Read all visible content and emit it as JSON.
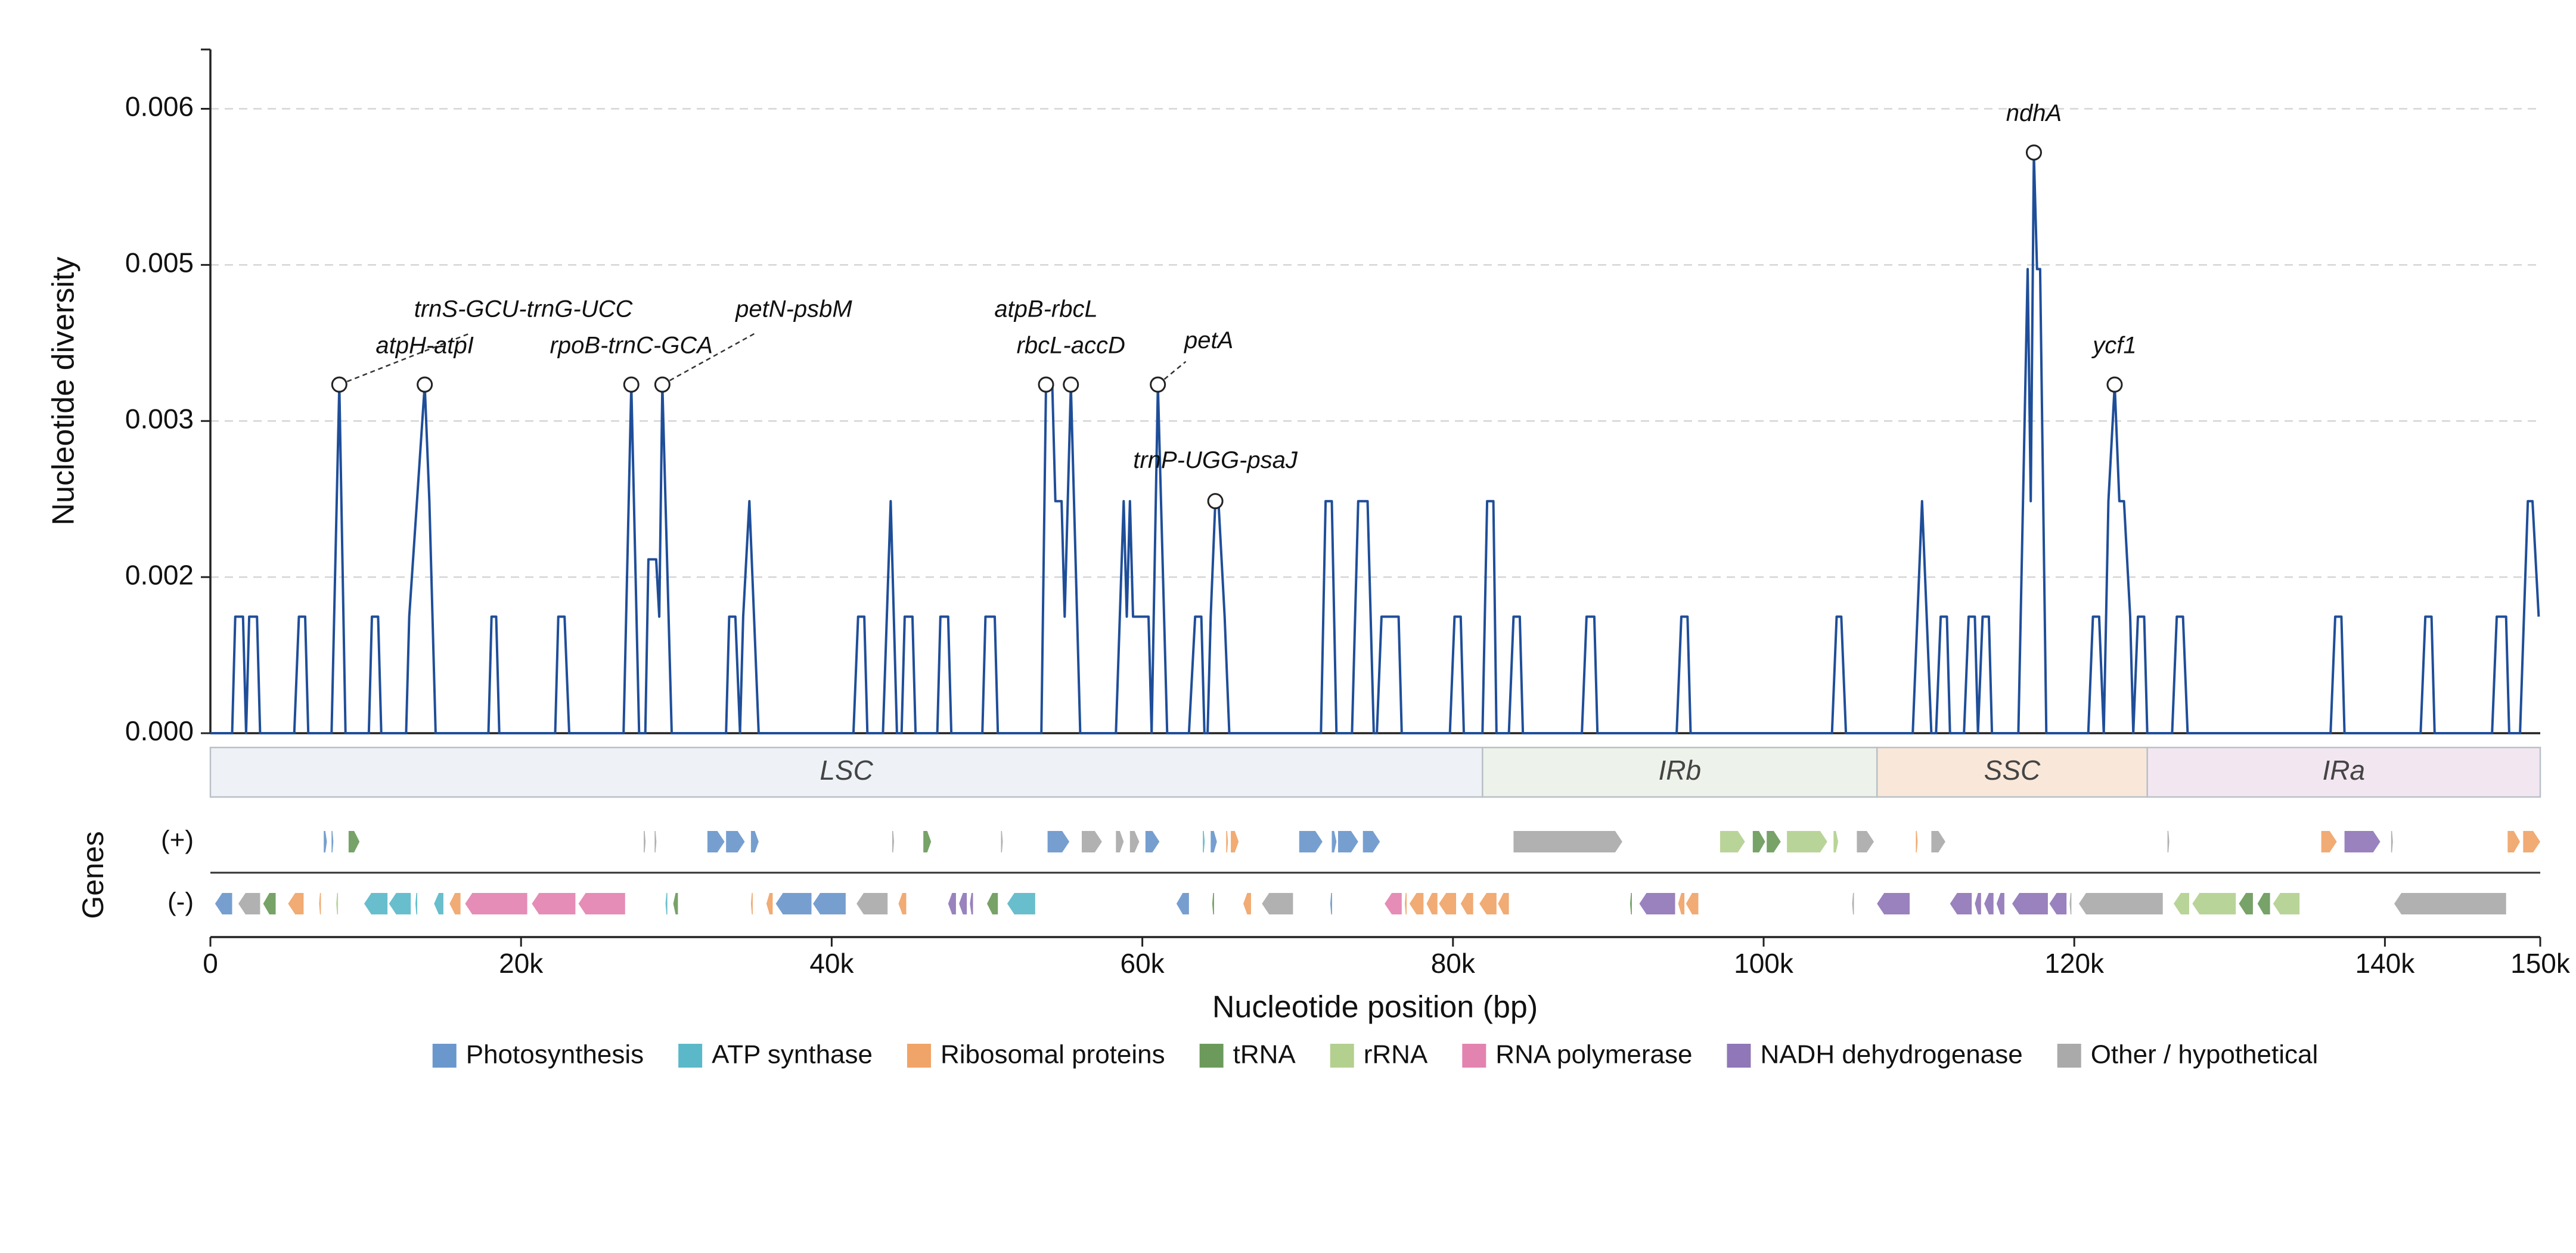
{
  "chart_data": {
    "type": "line",
    "xlabel": "Nucleotide position (bp)",
    "ylabel": "Nucleotide diversity",
    "color": "#1f4e99",
    "xlim": [
      0,
      150000
    ],
    "ylim": [
      0,
      0.00657
    ],
    "xticks": [
      0,
      {
        "value": 20000,
        "label": "20k"
      },
      {
        "value": 40000,
        "label": "40k"
      },
      {
        "value": 60000,
        "label": "60k"
      },
      {
        "value": 80000,
        "label": "80k"
      },
      {
        "value": 100000,
        "label": "100k"
      },
      {
        "value": 120000,
        "label": "120k"
      },
      {
        "value": 140000,
        "label": "140k"
      },
      {
        "value": 150000,
        "label": "150k"
      }
    ],
    "yticks": [
      {
        "value": 0,
        "label": "0.000"
      },
      {
        "value": 0.0015,
        "label": "0.002"
      },
      0.003,
      {
        "value": 0.0045,
        "label": "0.005"
      },
      0.006
    ],
    "grid": true,
    "x": [
      0,
      1400,
      1600,
      2100,
      2300,
      2500,
      3000,
      3200,
      5400,
      5700,
      6100,
      6300,
      7800,
      8300,
      8700,
      10200,
      10400,
      10800,
      11000,
      12600,
      12800,
      13300,
      13800,
      14100,
      14500,
      17900,
      18100,
      18400,
      18600,
      22200,
      22400,
      22800,
      23100,
      26600,
      27100,
      27600,
      28000,
      28200,
      28700,
      28900,
      29100,
      29700,
      33200,
      33400,
      33800,
      34100,
      34300,
      34700,
      35000,
      35300,
      41400,
      41700,
      42100,
      42300,
      43300,
      43800,
      44200,
      44500,
      44700,
      45200,
      45400,
      46800,
      47000,
      47500,
      47700,
      49700,
      49900,
      50500,
      50700,
      53500,
      53800,
      54200,
      54400,
      54800,
      55000,
      55400,
      56000,
      58300,
      58800,
      59000,
      59200,
      59400,
      60400,
      60600,
      61000,
      61600,
      63000,
      63400,
      63800,
      64000,
      64200,
      64400,
      64700,
      64900,
      65300,
      65600,
      71500,
      71800,
      72200,
      72500,
      73500,
      73900,
      74500,
      74900,
      75100,
      75400,
      76500,
      76700,
      79800,
      80100,
      80500,
      80700,
      81900,
      82200,
      82600,
      82800,
      83600,
      83900,
      84300,
      84500,
      88300,
      88600,
      89100,
      89300,
      94400,
      94700,
      95100,
      95300,
      104400,
      104700,
      105000,
      105300,
      109600,
      109900,
      110200,
      110500,
      110800,
      111100,
      111400,
      111800,
      112000,
      112900,
      113200,
      113600,
      113800,
      114100,
      114500,
      114700,
      116400,
      116700,
      117000,
      117200,
      117400,
      117600,
      117800,
      118200,
      120900,
      121200,
      121600,
      121900,
      122200,
      122600,
      122900,
      123200,
      123600,
      123800,
      124100,
      124500,
      124700,
      126300,
      126600,
      127000,
      127300,
      136500,
      136800,
      137200,
      137400,
      142300,
      142600,
      143000,
      143200,
      146900,
      147200,
      147800,
      148000,
      148700,
      149200,
      149500,
      149900
    ],
    "values": [
      0,
      0,
      0.00112,
      0.00112,
      0,
      0.00112,
      0.00112,
      0,
      0,
      0.00112,
      0.00112,
      0,
      0,
      0.00335,
      0,
      0,
      0.00112,
      0.00112,
      0,
      0,
      0.00112,
      0.00223,
      0.00335,
      0.00223,
      0,
      0,
      0.00112,
      0.00112,
      0,
      0,
      0.00112,
      0.00112,
      0,
      0,
      0.00335,
      0,
      0,
      0.00167,
      0.00167,
      0.00112,
      0.00335,
      0,
      0,
      0.00112,
      0.00112,
      0,
      0.00112,
      0.00223,
      0.00112,
      0,
      0,
      0.00112,
      0.00112,
      0,
      0,
      0.00223,
      0,
      0,
      0.00112,
      0.00112,
      0,
      0,
      0.00112,
      0.00112,
      0,
      0,
      0.00112,
      0.00112,
      0,
      0,
      0.00335,
      0.00335,
      0.00223,
      0.00223,
      0.00112,
      0.00335,
      0,
      0,
      0.00223,
      0.00112,
      0.00223,
      0.00112,
      0.00112,
      0,
      0.00335,
      0,
      0,
      0.00112,
      0.00112,
      0,
      0,
      0.00112,
      0.00223,
      0.00223,
      0.00112,
      0,
      0,
      0.00223,
      0.00223,
      0,
      0,
      0.00223,
      0.00223,
      0,
      0,
      0.00112,
      0.00112,
      0,
      0,
      0.00112,
      0.00112,
      0,
      0,
      0.00223,
      0.00223,
      0,
      0,
      0.00112,
      0.00112,
      0,
      0,
      0.00112,
      0.00112,
      0,
      0,
      0.00112,
      0.00112,
      0,
      0,
      0.00112,
      0.00112,
      0,
      0,
      0.00112,
      0.00223,
      0.00112,
      0,
      0,
      0.00112,
      0.00112,
      0,
      0,
      0.00112,
      0.00112,
      0,
      0.00112,
      0.00112,
      0,
      0,
      0.00223,
      0.00446,
      0.00223,
      0.00558,
      0.00446,
      0.00446,
      0,
      0,
      0.00112,
      0.00112,
      0,
      0.00223,
      0.00335,
      0.00223,
      0.00223,
      0.00112,
      0,
      0.00112,
      0.00112,
      0,
      0,
      0.00112,
      0.00112,
      0,
      0,
      0.00112,
      0.00112,
      0,
      0,
      0.00112,
      0.00112,
      0,
      0,
      0.00112,
      0.00112,
      0,
      0,
      0.00223,
      0.00223,
      0.00112
    ],
    "annotations": [
      {
        "text": "trnS-GCU-trnG-UCC",
        "x": 8300,
        "y": 0.00335
      },
      {
        "text": "atpH-atpI",
        "x": 13800,
        "y": 0.00335
      },
      {
        "text": "rpoB-trnC-GCA",
        "x": 27100,
        "y": 0.00335
      },
      {
        "text": "petN-psbM",
        "x": 29100,
        "y": 0.00335
      },
      {
        "text": "atpB-rbcL",
        "x": 53800,
        "y": 0.00335
      },
      {
        "text": "rbcL-accD",
        "x": 55400,
        "y": 0.00335
      },
      {
        "text": "petA",
        "x": 61000,
        "y": 0.00335
      },
      {
        "text": "trnP-UGG-psaJ",
        "x": 64700,
        "y": 0.00223
      },
      {
        "text": "ndhA",
        "x": 117400,
        "y": 0.00558
      },
      {
        "text": "ycf1",
        "x": 122600,
        "y": 0.00335
      }
    ],
    "regions": [
      {
        "name": "LSC",
        "start": 0,
        "end": 81900,
        "color": "#eef2f6"
      },
      {
        "name": "IRb",
        "start": 81900,
        "end": 107300,
        "color": "#edf2ea"
      },
      {
        "name": "SSC",
        "start": 107300,
        "end": 124700,
        "color": "#f9e8d9"
      },
      {
        "name": "IRa",
        "start": 124700,
        "end": 150000,
        "color": "#f2e7f1"
      }
    ],
    "genes_label": "Genes",
    "gene_groups": [
      {
        "name": "Photosynthesis",
        "color": "#6a97cc"
      },
      {
        "name": "ATP synthase",
        "color": "#5bb8c8"
      },
      {
        "name": "Ribosomal proteins",
        "color": "#f0a468"
      },
      {
        "name": "tRNA",
        "color": "#6b9a5b"
      },
      {
        "name": "rRNA",
        "color": "#b3d08f"
      },
      {
        "name": "RNA polymerase",
        "color": "#e383b0"
      },
      {
        "name": "NADH dehydrogenase",
        "color": "#9077b7"
      },
      {
        "name": "Other / hypothetical",
        "color": "#aaaaaa"
      }
    ],
    "gene_tracks": [
      {
        "label": "(+)",
        "genes": [
          [
            7300,
            7500,
            0
          ],
          [
            7800,
            7900,
            0
          ],
          [
            8900,
            9600,
            3
          ],
          [
            27900,
            28000,
            7
          ],
          [
            28600,
            28700,
            7
          ],
          [
            32000,
            33100,
            0
          ],
          [
            33200,
            34400,
            0
          ],
          [
            34800,
            35300,
            0
          ],
          [
            43900,
            44000,
            7
          ],
          [
            45900,
            46400,
            3
          ],
          [
            50900,
            51000,
            7
          ],
          [
            53900,
            55300,
            0
          ],
          [
            56100,
            57400,
            7
          ],
          [
            58300,
            58800,
            7
          ],
          [
            59200,
            59800,
            7
          ],
          [
            60200,
            61100,
            0
          ],
          [
            63900,
            64000,
            1
          ],
          [
            64400,
            64800,
            0
          ],
          [
            65400,
            65500,
            2
          ],
          [
            65700,
            66200,
            2
          ],
          [
            70100,
            71600,
            0
          ],
          [
            72200,
            72500,
            0
          ],
          [
            72600,
            73900,
            0
          ],
          [
            74200,
            75300,
            0
          ],
          [
            83900,
            90900,
            7
          ],
          [
            97200,
            98800,
            4
          ],
          [
            99300,
            100100,
            3
          ],
          [
            100200,
            101100,
            3
          ],
          [
            101500,
            104100,
            4
          ],
          [
            104500,
            104800,
            4
          ],
          [
            106000,
            107100,
            7
          ],
          [
            109800,
            109900,
            2
          ],
          [
            110800,
            111700,
            7
          ],
          [
            126000,
            126100,
            7
          ],
          [
            135900,
            136900,
            2
          ],
          [
            137400,
            139700,
            6
          ],
          [
            140400,
            140500,
            7
          ],
          [
            147900,
            148700,
            2
          ],
          [
            148900,
            150000,
            2
          ]
        ]
      },
      {
        "label": "(-)",
        "genes": [
          [
            300,
            1400,
            0
          ],
          [
            1800,
            3200,
            7
          ],
          [
            3400,
            4200,
            3
          ],
          [
            5000,
            6000,
            2
          ],
          [
            7000,
            7100,
            2
          ],
          [
            8100,
            8200,
            4
          ],
          [
            9900,
            11400,
            1
          ],
          [
            11500,
            12900,
            1
          ],
          [
            13200,
            13300,
            1
          ],
          [
            14400,
            15000,
            1
          ],
          [
            15400,
            16100,
            2
          ],
          [
            16400,
            20400,
            5
          ],
          [
            20700,
            23500,
            5
          ],
          [
            23700,
            26700,
            5
          ],
          [
            29300,
            29400,
            1
          ],
          [
            29800,
            30100,
            3
          ],
          [
            34800,
            34900,
            2
          ],
          [
            35800,
            36200,
            2
          ],
          [
            36400,
            38700,
            0
          ],
          [
            38800,
            40900,
            0
          ],
          [
            41600,
            43600,
            7
          ],
          [
            44300,
            44800,
            2
          ],
          [
            47500,
            48000,
            6
          ],
          [
            48200,
            48700,
            6
          ],
          [
            48900,
            49100,
            6
          ],
          [
            50000,
            50700,
            3
          ],
          [
            51300,
            53100,
            1
          ],
          [
            62200,
            63000,
            0
          ],
          [
            64500,
            64600,
            3
          ],
          [
            66500,
            67000,
            2
          ],
          [
            67700,
            69700,
            7
          ],
          [
            72100,
            72200,
            0
          ],
          [
            75600,
            76700,
            5
          ],
          [
            76900,
            77000,
            2
          ],
          [
            77200,
            78100,
            2
          ],
          [
            78300,
            79000,
            2
          ],
          [
            79100,
            80200,
            2
          ],
          [
            80500,
            81300,
            2
          ],
          [
            81700,
            82800,
            2
          ],
          [
            82900,
            83600,
            2
          ],
          [
            91400,
            91500,
            3
          ],
          [
            92000,
            94300,
            6
          ],
          [
            94500,
            94900,
            2
          ],
          [
            95000,
            95800,
            2
          ],
          [
            105700,
            105800,
            7
          ],
          [
            107300,
            109400,
            6
          ],
          [
            112000,
            113400,
            6
          ],
          [
            113600,
            114000,
            6
          ],
          [
            114200,
            114800,
            6
          ],
          [
            115000,
            115500,
            6
          ],
          [
            116000,
            118300,
            6
          ],
          [
            118400,
            119500,
            6
          ],
          [
            119700,
            119800,
            7
          ],
          [
            120300,
            125700,
            7
          ],
          [
            126400,
            127400,
            4
          ],
          [
            127600,
            130400,
            4
          ],
          [
            130600,
            131500,
            3
          ],
          [
            131800,
            132600,
            3
          ],
          [
            132800,
            134500,
            4
          ],
          [
            140600,
            147800,
            7
          ]
        ]
      }
    ]
  }
}
